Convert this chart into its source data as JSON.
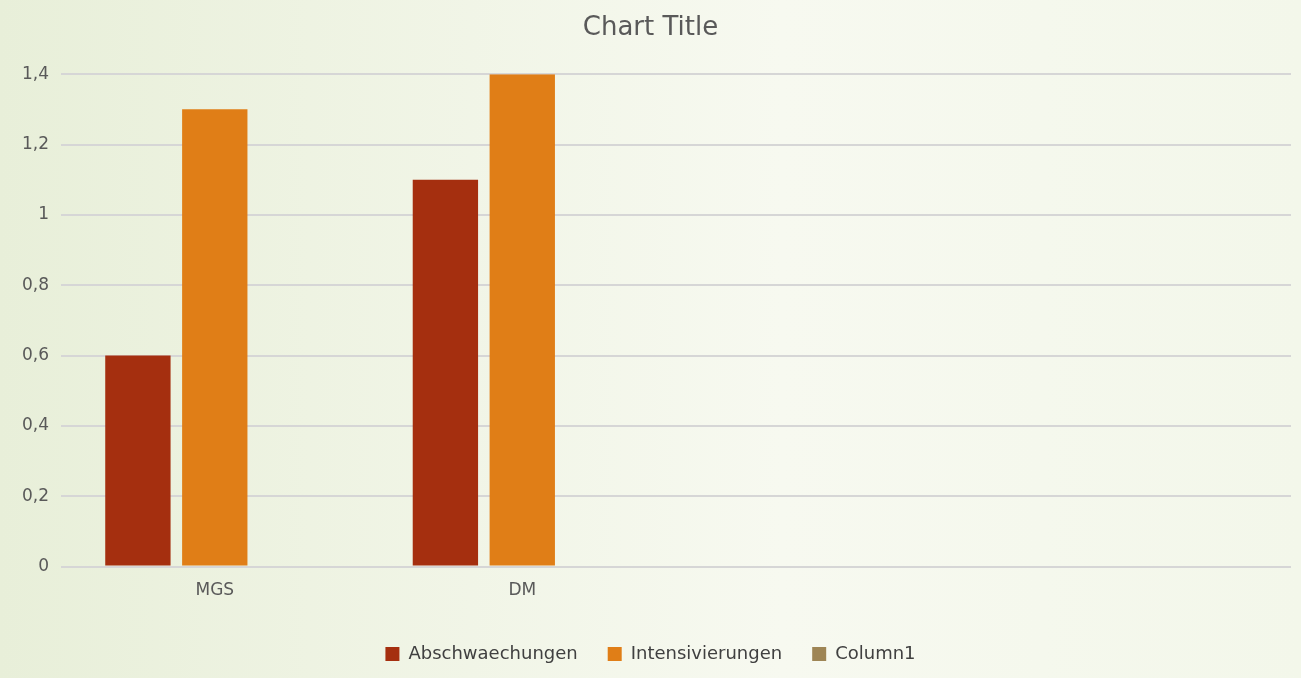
{
  "chart_data": {
    "type": "bar",
    "title": "Chart Title",
    "categories": [
      "MGS",
      "DM",
      null,
      null
    ],
    "series": [
      {
        "name": "Abschwaechungen",
        "color": "#a52f0f",
        "values": [
          0.6,
          1.1,
          null,
          null
        ]
      },
      {
        "name": "Intensivierungen",
        "color": "#e07e17",
        "values": [
          1.3,
          1.4,
          null,
          null
        ]
      },
      {
        "name": "Column1",
        "color": "#9e8555",
        "values": [
          null,
          null,
          null,
          null
        ]
      }
    ],
    "ylim": [
      0,
      1.4
    ],
    "yticks": [
      {
        "value": 0,
        "label": "0"
      },
      {
        "value": 0.2,
        "label": "0,2"
      },
      {
        "value": 0.4,
        "label": "0,4"
      },
      {
        "value": 0.6,
        "label": "0,6"
      },
      {
        "value": 0.8,
        "label": "0,8"
      },
      {
        "value": 1,
        "label": "1"
      },
      {
        "value": 1.2,
        "label": "1,2"
      },
      {
        "value": 1.4,
        "label": "1,4"
      }
    ],
    "grid": "y",
    "legend": "bottom"
  }
}
